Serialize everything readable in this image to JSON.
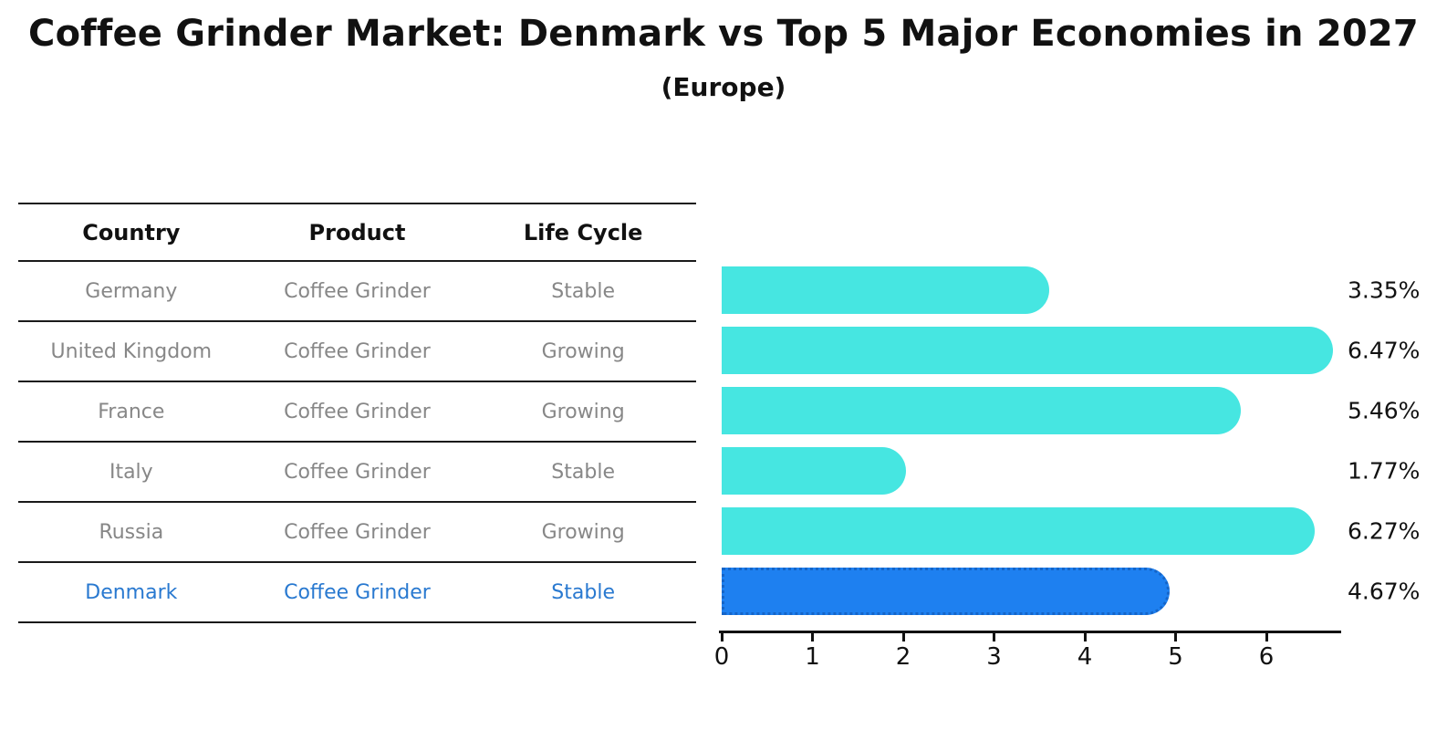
{
  "title": "Coffee Grinder Market: Denmark vs Top 5 Major Economies in 2027",
  "subtitle": "(Europe)",
  "table": {
    "headers": [
      "Country",
      "Product",
      "Life Cycle"
    ],
    "rows": [
      {
        "country": "Germany",
        "product": "Coffee Grinder",
        "life_cycle": "Stable",
        "highlighted": false
      },
      {
        "country": "United Kingdom",
        "product": "Coffee Grinder",
        "life_cycle": "Growing",
        "highlighted": false
      },
      {
        "country": "France",
        "product": "Coffee Grinder",
        "life_cycle": "Growing",
        "highlighted": false
      },
      {
        "country": "Italy",
        "product": "Coffee Grinder",
        "life_cycle": "Stable",
        "highlighted": false
      },
      {
        "country": "Russia",
        "product": "Coffee Grinder",
        "life_cycle": "Growing",
        "highlighted": false
      },
      {
        "country": "Denmark",
        "product": "Coffee Grinder",
        "life_cycle": "Stable",
        "highlighted": true
      }
    ]
  },
  "chart_data": {
    "type": "bar",
    "orientation": "horizontal",
    "title": "Coffee Grinder Market: Denmark vs Top 5 Major Economies in 2027",
    "subtitle": "(Europe)",
    "categories": [
      "Germany",
      "United Kingdom",
      "France",
      "Italy",
      "Russia",
      "Denmark"
    ],
    "values": [
      3.35,
      6.47,
      5.46,
      1.77,
      6.27,
      4.67
    ],
    "value_labels": [
      "3.35%",
      "6.47%",
      "5.46%",
      "1.77%",
      "6.27%",
      "4.67%"
    ],
    "highlight_index": 5,
    "x_ticks": [
      0,
      1,
      2,
      3,
      4,
      5,
      6
    ],
    "xlim": [
      0,
      6.8
    ],
    "grid": false,
    "legend": false
  },
  "colors": {
    "bar": "#46e6e1",
    "highlight_bar": "#1e80f0",
    "highlight_border": "#1565c8",
    "highlight_text": "#2979d0",
    "row_text": "#878787",
    "text": "#111111"
  }
}
